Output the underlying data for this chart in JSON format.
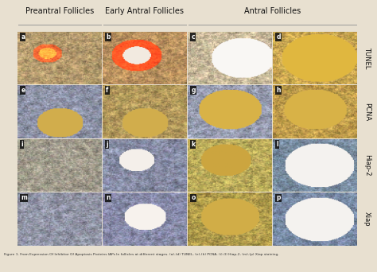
{
  "title_col1": "Preantral Follicles",
  "title_col2": "Early Antral Follicles",
  "title_col3": "Antral Follicles",
  "row_labels": [
    "TUNEL",
    "PCNA",
    "Hiap-2",
    "Xiap"
  ],
  "cell_labels": [
    [
      "a",
      "b",
      "c",
      "d"
    ],
    [
      "e",
      "f",
      "g",
      "h"
    ],
    [
      "i",
      "j",
      "k",
      "l"
    ],
    [
      "m",
      "n",
      "o",
      "p"
    ]
  ],
  "n_rows": 4,
  "n_cols": 4,
  "figsize": [
    4.74,
    3.42
  ],
  "dpi": 100,
  "bg_color": "#e8e0d0",
  "caption": "Figure 1. From Expression Of Inhibitor Of Apoptosis Proteins IAPs In follicles at different stages. (a)-(d) TUNEL, (e)-(h) PCNA, (i)-(l) Hiap-2, (m)-(p) Xiap staining.",
  "cell_base_colors": [
    [
      [
        180,
        155,
        110
      ],
      [
        185,
        145,
        95
      ],
      [
        200,
        185,
        155
      ],
      [
        200,
        165,
        80
      ]
    ],
    [
      [
        140,
        145,
        165
      ],
      [
        175,
        150,
        90
      ],
      [
        150,
        155,
        175
      ],
      [
        190,
        155,
        75
      ]
    ],
    [
      [
        160,
        155,
        140
      ],
      [
        135,
        140,
        165
      ],
      [
        185,
        170,
        90
      ],
      [
        120,
        140,
        160
      ]
    ],
    [
      [
        145,
        148,
        165
      ],
      [
        135,
        138,
        168
      ],
      [
        175,
        155,
        75
      ],
      [
        120,
        138,
        165
      ]
    ]
  ],
  "header_underline_color": "#888888",
  "label_box_color": "#111111",
  "row_label_color": "#111111",
  "top_header_bg": "#f0ece0",
  "right_label_bg": "#e8e0d0"
}
